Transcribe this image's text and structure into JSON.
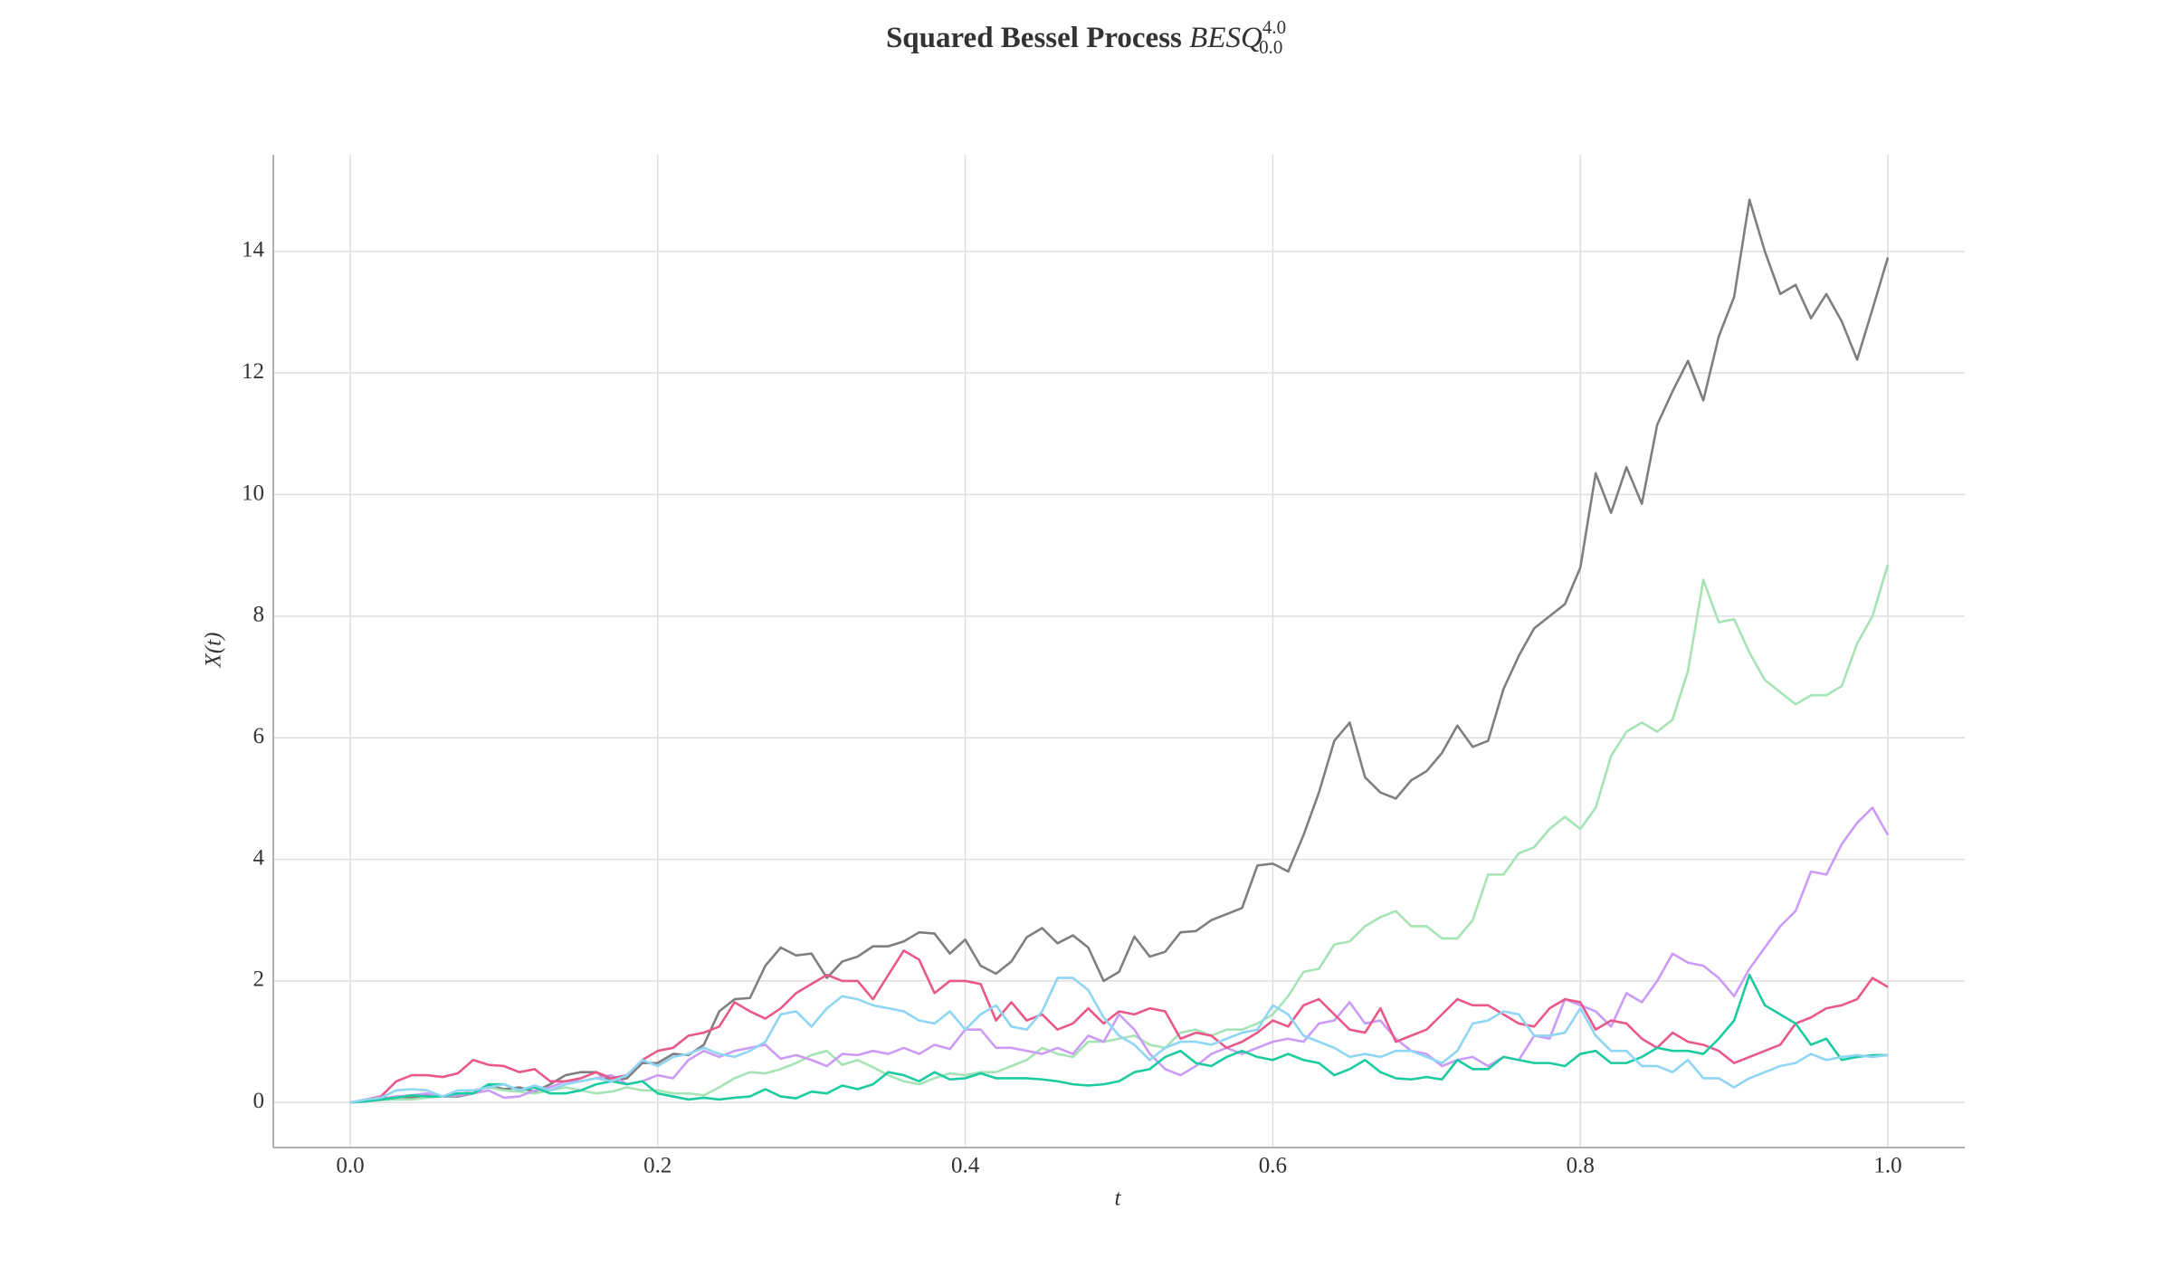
{
  "chart_data": {
    "type": "line",
    "title": "Squared Bessel Process",
    "title_math": {
      "base": "BESQ",
      "sup": "4.0",
      "sub": "0.0"
    },
    "x_label": "t",
    "y_label": "X(t)",
    "x": [
      0,
      0.01,
      0.02,
      0.03,
      0.04,
      0.05,
      0.06,
      0.07,
      0.08,
      0.09,
      0.1,
      0.11,
      0.12,
      0.13,
      0.14,
      0.15,
      0.16,
      0.17,
      0.18,
      0.19,
      0.2,
      0.21,
      0.22,
      0.23,
      0.24,
      0.25,
      0.26,
      0.27,
      0.28,
      0.29,
      0.3,
      0.31,
      0.32,
      0.33,
      0.34,
      0.35,
      0.36,
      0.37,
      0.38,
      0.39,
      0.4,
      0.41,
      0.42,
      0.43,
      0.44,
      0.45,
      0.46,
      0.47,
      0.48,
      0.49,
      0.5,
      0.51,
      0.52,
      0.53,
      0.54,
      0.55,
      0.56,
      0.57,
      0.58,
      0.59,
      0.6,
      0.61,
      0.62,
      0.63,
      0.64,
      0.65,
      0.66,
      0.67,
      0.68,
      0.69,
      0.7,
      0.71,
      0.72,
      0.73,
      0.74,
      0.75,
      0.76,
      0.77,
      0.78,
      0.79,
      0.8,
      0.81,
      0.82,
      0.83,
      0.84,
      0.85,
      0.86,
      0.87,
      0.88,
      0.89,
      0.9,
      0.91,
      0.92,
      0.93,
      0.94,
      0.95,
      0.96,
      0.97,
      0.98,
      0.99,
      1
    ],
    "series": [
      {
        "color": "#7f7f7f",
        "values": [
          0,
          0.03,
          0.06,
          0.1,
          0.08,
          0.12,
          0.1,
          0.1,
          0.15,
          0.28,
          0.22,
          0.25,
          0.18,
          0.3,
          0.45,
          0.5,
          0.5,
          0.35,
          0.4,
          0.65,
          0.65,
          0.8,
          0.78,
          0.95,
          1.5,
          1.7,
          1.72,
          2.25,
          2.55,
          2.42,
          2.45,
          2.05,
          2.32,
          2.4,
          2.57,
          2.57,
          2.65,
          2.8,
          2.78,
          2.45,
          2.68,
          2.25,
          2.12,
          2.32,
          2.72,
          2.87,
          2.62,
          2.75,
          2.55,
          2.0,
          2.15,
          2.73,
          2.4,
          2.48,
          2.8,
          2.82,
          3.0,
          3.1,
          3.2,
          3.9,
          3.93,
          3.8,
          4.4,
          5.1,
          5.95,
          6.25,
          5.35,
          5.1,
          5.0,
          5.3,
          5.45,
          5.75,
          6.2,
          5.85,
          5.95,
          6.8,
          7.35,
          7.8,
          8.0,
          8.2,
          8.8,
          10.35,
          9.7,
          10.45,
          9.85,
          11.15,
          11.7,
          12.2,
          11.55,
          12.6,
          13.25,
          14.85,
          14.0,
          13.3,
          13.45,
          12.9,
          13.3,
          12.85,
          12.22,
          13.05,
          13.9
        ]
      },
      {
        "color": "#a6e3b5",
        "values": [
          0,
          0.02,
          0.04,
          0.05,
          0.05,
          0.08,
          0.1,
          0.12,
          0.2,
          0.25,
          0.2,
          0.18,
          0.15,
          0.2,
          0.25,
          0.2,
          0.15,
          0.18,
          0.25,
          0.2,
          0.2,
          0.15,
          0.15,
          0.12,
          0.25,
          0.4,
          0.5,
          0.48,
          0.55,
          0.65,
          0.78,
          0.85,
          0.62,
          0.7,
          0.58,
          0.45,
          0.35,
          0.3,
          0.4,
          0.48,
          0.45,
          0.5,
          0.5,
          0.6,
          0.7,
          0.9,
          0.8,
          0.75,
          1.0,
          1.0,
          1.05,
          1.1,
          0.95,
          0.9,
          1.15,
          1.2,
          1.1,
          1.2,
          1.2,
          1.3,
          1.45,
          1.75,
          2.15,
          2.2,
          2.6,
          2.65,
          2.9,
          3.05,
          3.15,
          2.9,
          2.9,
          2.7,
          2.7,
          3.0,
          3.75,
          3.75,
          4.1,
          4.2,
          4.5,
          4.7,
          4.5,
          4.85,
          5.7,
          6.1,
          6.25,
          6.1,
          6.3,
          7.1,
          8.6,
          7.9,
          7.95,
          7.4,
          6.95,
          6.75,
          6.55,
          6.7,
          6.7,
          6.85,
          7.55,
          8.0,
          8.85
        ]
      },
      {
        "color": "#cb9bf7",
        "values": [
          0,
          0.02,
          0.05,
          0.1,
          0.12,
          0.15,
          0.1,
          0.12,
          0.15,
          0.2,
          0.08,
          0.1,
          0.2,
          0.25,
          0.35,
          0.35,
          0.4,
          0.45,
          0.3,
          0.35,
          0.45,
          0.4,
          0.7,
          0.85,
          0.75,
          0.85,
          0.9,
          0.95,
          0.72,
          0.78,
          0.7,
          0.6,
          0.8,
          0.78,
          0.85,
          0.8,
          0.9,
          0.8,
          0.95,
          0.88,
          1.2,
          1.2,
          0.9,
          0.9,
          0.85,
          0.8,
          0.9,
          0.8,
          1.1,
          1.0,
          1.45,
          1.2,
          0.8,
          0.55,
          0.45,
          0.6,
          0.8,
          0.9,
          0.8,
          0.9,
          1.0,
          1.05,
          1.0,
          1.3,
          1.35,
          1.65,
          1.3,
          1.35,
          1.05,
          0.85,
          0.8,
          0.6,
          0.7,
          0.75,
          0.6,
          0.75,
          0.7,
          1.1,
          1.05,
          1.7,
          1.6,
          1.5,
          1.25,
          1.8,
          1.65,
          2.0,
          2.45,
          2.3,
          2.25,
          2.05,
          1.75,
          2.2,
          2.55,
          2.9,
          3.15,
          3.8,
          3.75,
          4.25,
          4.6,
          4.85,
          4.4
        ]
      },
      {
        "color": "#e8588a",
        "values": [
          0,
          0.05,
          0.1,
          0.35,
          0.45,
          0.45,
          0.42,
          0.48,
          0.7,
          0.62,
          0.6,
          0.5,
          0.55,
          0.35,
          0.35,
          0.4,
          0.5,
          0.4,
          0.45,
          0.7,
          0.85,
          0.9,
          1.1,
          1.15,
          1.25,
          1.65,
          1.5,
          1.38,
          1.55,
          1.8,
          1.95,
          2.1,
          2.0,
          2.0,
          1.7,
          2.1,
          2.5,
          2.35,
          1.8,
          2.0,
          2.0,
          1.95,
          1.35,
          1.65,
          1.35,
          1.45,
          1.2,
          1.3,
          1.55,
          1.3,
          1.5,
          1.45,
          1.55,
          1.5,
          1.05,
          1.15,
          1.1,
          0.9,
          1.0,
          1.15,
          1.35,
          1.25,
          1.6,
          1.7,
          1.45,
          1.2,
          1.15,
          1.55,
          1.0,
          1.1,
          1.2,
          1.45,
          1.7,
          1.6,
          1.6,
          1.45,
          1.3,
          1.25,
          1.55,
          1.7,
          1.65,
          1.2,
          1.35,
          1.3,
          1.05,
          0.9,
          1.15,
          1.0,
          0.95,
          0.85,
          0.65,
          0.75,
          0.85,
          0.95,
          1.3,
          1.4,
          1.55,
          1.6,
          1.7,
          2.05,
          1.9
        ]
      },
      {
        "color": "#1ccba0",
        "values": [
          0,
          0.02,
          0.05,
          0.08,
          0.12,
          0.1,
          0.1,
          0.15,
          0.15,
          0.3,
          0.3,
          0.2,
          0.25,
          0.15,
          0.15,
          0.2,
          0.3,
          0.35,
          0.3,
          0.35,
          0.15,
          0.1,
          0.05,
          0.08,
          0.05,
          0.08,
          0.1,
          0.22,
          0.1,
          0.07,
          0.18,
          0.15,
          0.28,
          0.22,
          0.3,
          0.5,
          0.45,
          0.35,
          0.5,
          0.38,
          0.4,
          0.48,
          0.4,
          0.4,
          0.4,
          0.38,
          0.35,
          0.3,
          0.28,
          0.3,
          0.35,
          0.5,
          0.55,
          0.75,
          0.85,
          0.65,
          0.6,
          0.75,
          0.85,
          0.75,
          0.7,
          0.8,
          0.7,
          0.65,
          0.45,
          0.55,
          0.7,
          0.5,
          0.4,
          0.38,
          0.42,
          0.38,
          0.7,
          0.55,
          0.55,
          0.75,
          0.7,
          0.65,
          0.65,
          0.6,
          0.8,
          0.85,
          0.65,
          0.65,
          0.75,
          0.9,
          0.85,
          0.85,
          0.8,
          1.05,
          1.35,
          2.1,
          1.6,
          1.45,
          1.3,
          0.95,
          1.05,
          0.7,
          0.75,
          0.78,
          0.78
        ]
      },
      {
        "color": "#8fd5f4",
        "values": [
          0,
          0.05,
          0.08,
          0.2,
          0.22,
          0.2,
          0.1,
          0.2,
          0.2,
          0.25,
          0.3,
          0.2,
          0.28,
          0.2,
          0.3,
          0.35,
          0.4,
          0.35,
          0.45,
          0.7,
          0.6,
          0.75,
          0.8,
          0.9,
          0.8,
          0.75,
          0.85,
          1.0,
          1.45,
          1.5,
          1.25,
          1.55,
          1.75,
          1.7,
          1.6,
          1.55,
          1.5,
          1.35,
          1.3,
          1.5,
          1.2,
          1.45,
          1.6,
          1.25,
          1.2,
          1.5,
          2.05,
          2.05,
          1.85,
          1.4,
          1.1,
          0.95,
          0.7,
          0.9,
          1.0,
          1.0,
          0.95,
          1.05,
          1.15,
          1.2,
          1.6,
          1.45,
          1.1,
          1.0,
          0.9,
          0.75,
          0.8,
          0.75,
          0.85,
          0.85,
          0.75,
          0.65,
          0.85,
          1.3,
          1.35,
          1.5,
          1.45,
          1.1,
          1.1,
          1.15,
          1.55,
          1.1,
          0.85,
          0.85,
          0.6,
          0.6,
          0.5,
          0.7,
          0.4,
          0.4,
          0.25,
          0.4,
          0.5,
          0.6,
          0.65,
          0.8,
          0.7,
          0.75,
          0.78,
          0.75,
          0.78
        ]
      }
    ],
    "xlim": [
      -0.05,
      1.05
    ],
    "ylim": [
      -0.74,
      15.59
    ],
    "xticks": [
      {
        "value": 0,
        "label": "0.0"
      },
      {
        "value": 0.2,
        "label": "0.2"
      },
      {
        "value": 0.4,
        "label": "0.4"
      },
      {
        "value": 0.6,
        "label": "0.6"
      },
      {
        "value": 0.8,
        "label": "0.8"
      },
      {
        "value": 1,
        "label": "1.0"
      }
    ],
    "yticks": [
      0,
      2,
      4,
      6,
      8,
      10,
      12,
      14
    ],
    "grid": true
  }
}
